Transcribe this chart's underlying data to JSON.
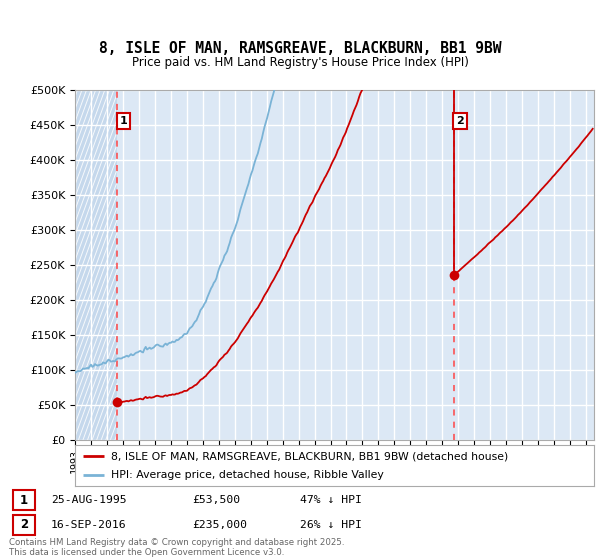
{
  "title_line1": "8, ISLE OF MAN, RAMSGREAVE, BLACKBURN, BB1 9BW",
  "title_line2": "Price paid vs. HM Land Registry's House Price Index (HPI)",
  "ylim": [
    0,
    500000
  ],
  "yticks": [
    0,
    50000,
    100000,
    150000,
    200000,
    250000,
    300000,
    350000,
    400000,
    450000,
    500000
  ],
  "ytick_labels": [
    "£0",
    "£50K",
    "£100K",
    "£150K",
    "£200K",
    "£250K",
    "£300K",
    "£350K",
    "£400K",
    "£450K",
    "£500K"
  ],
  "xlim_start": 1993.0,
  "xlim_end": 2025.5,
  "hpi_color": "#7ab3d6",
  "price_color": "#cc0000",
  "marker_color": "#cc0000",
  "transaction1_x": 1995.645,
  "transaction1_y": 53500,
  "transaction2_x": 2016.71,
  "transaction2_y": 235000,
  "legend_label1": "8, ISLE OF MAN, RAMSGREAVE, BLACKBURN, BB1 9BW (detached house)",
  "legend_label2": "HPI: Average price, detached house, Ribble Valley",
  "ann1_text": "25-AUG-1995",
  "ann1_price": "£53,500",
  "ann1_hpi": "47% ↓ HPI",
  "ann2_text": "16-SEP-2016",
  "ann2_price": "£235,000",
  "ann2_hpi": "26% ↓ HPI",
  "footer": "Contains HM Land Registry data © Crown copyright and database right 2025.\nThis data is licensed under the Open Government Licence v3.0.",
  "bg_color": "#dce8f5",
  "grid_color": "#ffffff",
  "dashed_color": "#ff4444",
  "hatch_bg": "#c5d8ec"
}
